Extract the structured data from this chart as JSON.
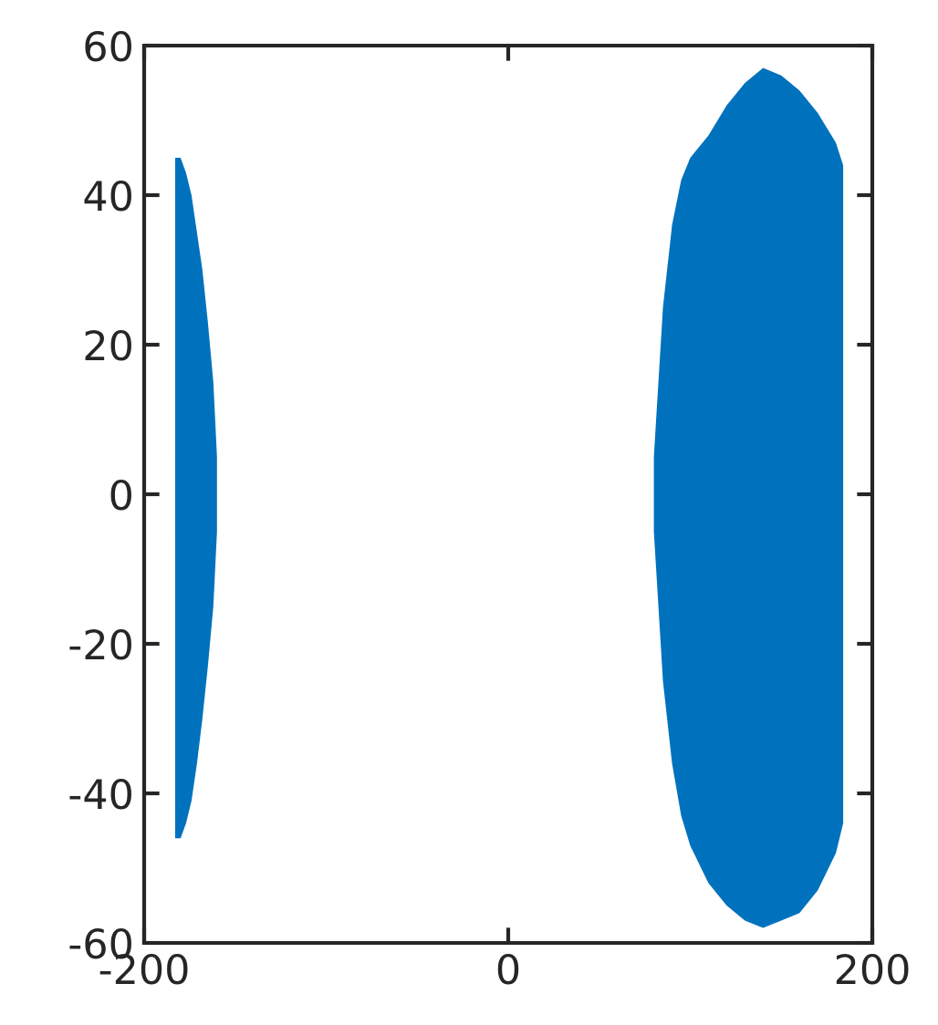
{
  "chart_data": {
    "type": "area",
    "series": [
      {
        "color": "#0072bd",
        "x": [
          -183,
          -180,
          -177,
          -174,
          -171,
          -168,
          -165,
          -162,
          -160
        ],
        "values": [
          45,
          45,
          43,
          40,
          35,
          30,
          23,
          15,
          5
        ]
      },
      {
        "color": "#0072bd",
        "x": [
          -183,
          -180,
          -177,
          -174,
          -171,
          -168,
          -165,
          -162,
          -160
        ],
        "values": [
          -46,
          -46,
          -44,
          -41,
          -36,
          -30,
          -23,
          -15,
          -5
        ]
      },
      {
        "color": "#0072bd",
        "x": [
          80,
          85,
          90,
          95,
          100,
          110,
          120,
          130,
          140,
          150,
          160,
          170,
          180,
          184
        ],
        "values": [
          5,
          25,
          36,
          42,
          45,
          48,
          52,
          55,
          57,
          56,
          54,
          51,
          47,
          44
        ]
      },
      {
        "color": "#0072bd",
        "x": [
          80,
          85,
          90,
          95,
          100,
          110,
          120,
          130,
          140,
          150,
          160,
          170,
          180,
          184
        ],
        "values": [
          -5,
          -25,
          -36,
          -43,
          -47,
          -52,
          -55,
          -57,
          -58,
          -57,
          -56,
          -53,
          -48,
          -44
        ]
      }
    ],
    "xlim": [
      -200,
      200
    ],
    "xticks": [
      -200,
      0,
      200
    ],
    "ylim": [
      -60,
      60
    ],
    "yticks": [
      -60,
      -40,
      -20,
      0,
      20,
      40,
      60
    ],
    "grid": false
  }
}
